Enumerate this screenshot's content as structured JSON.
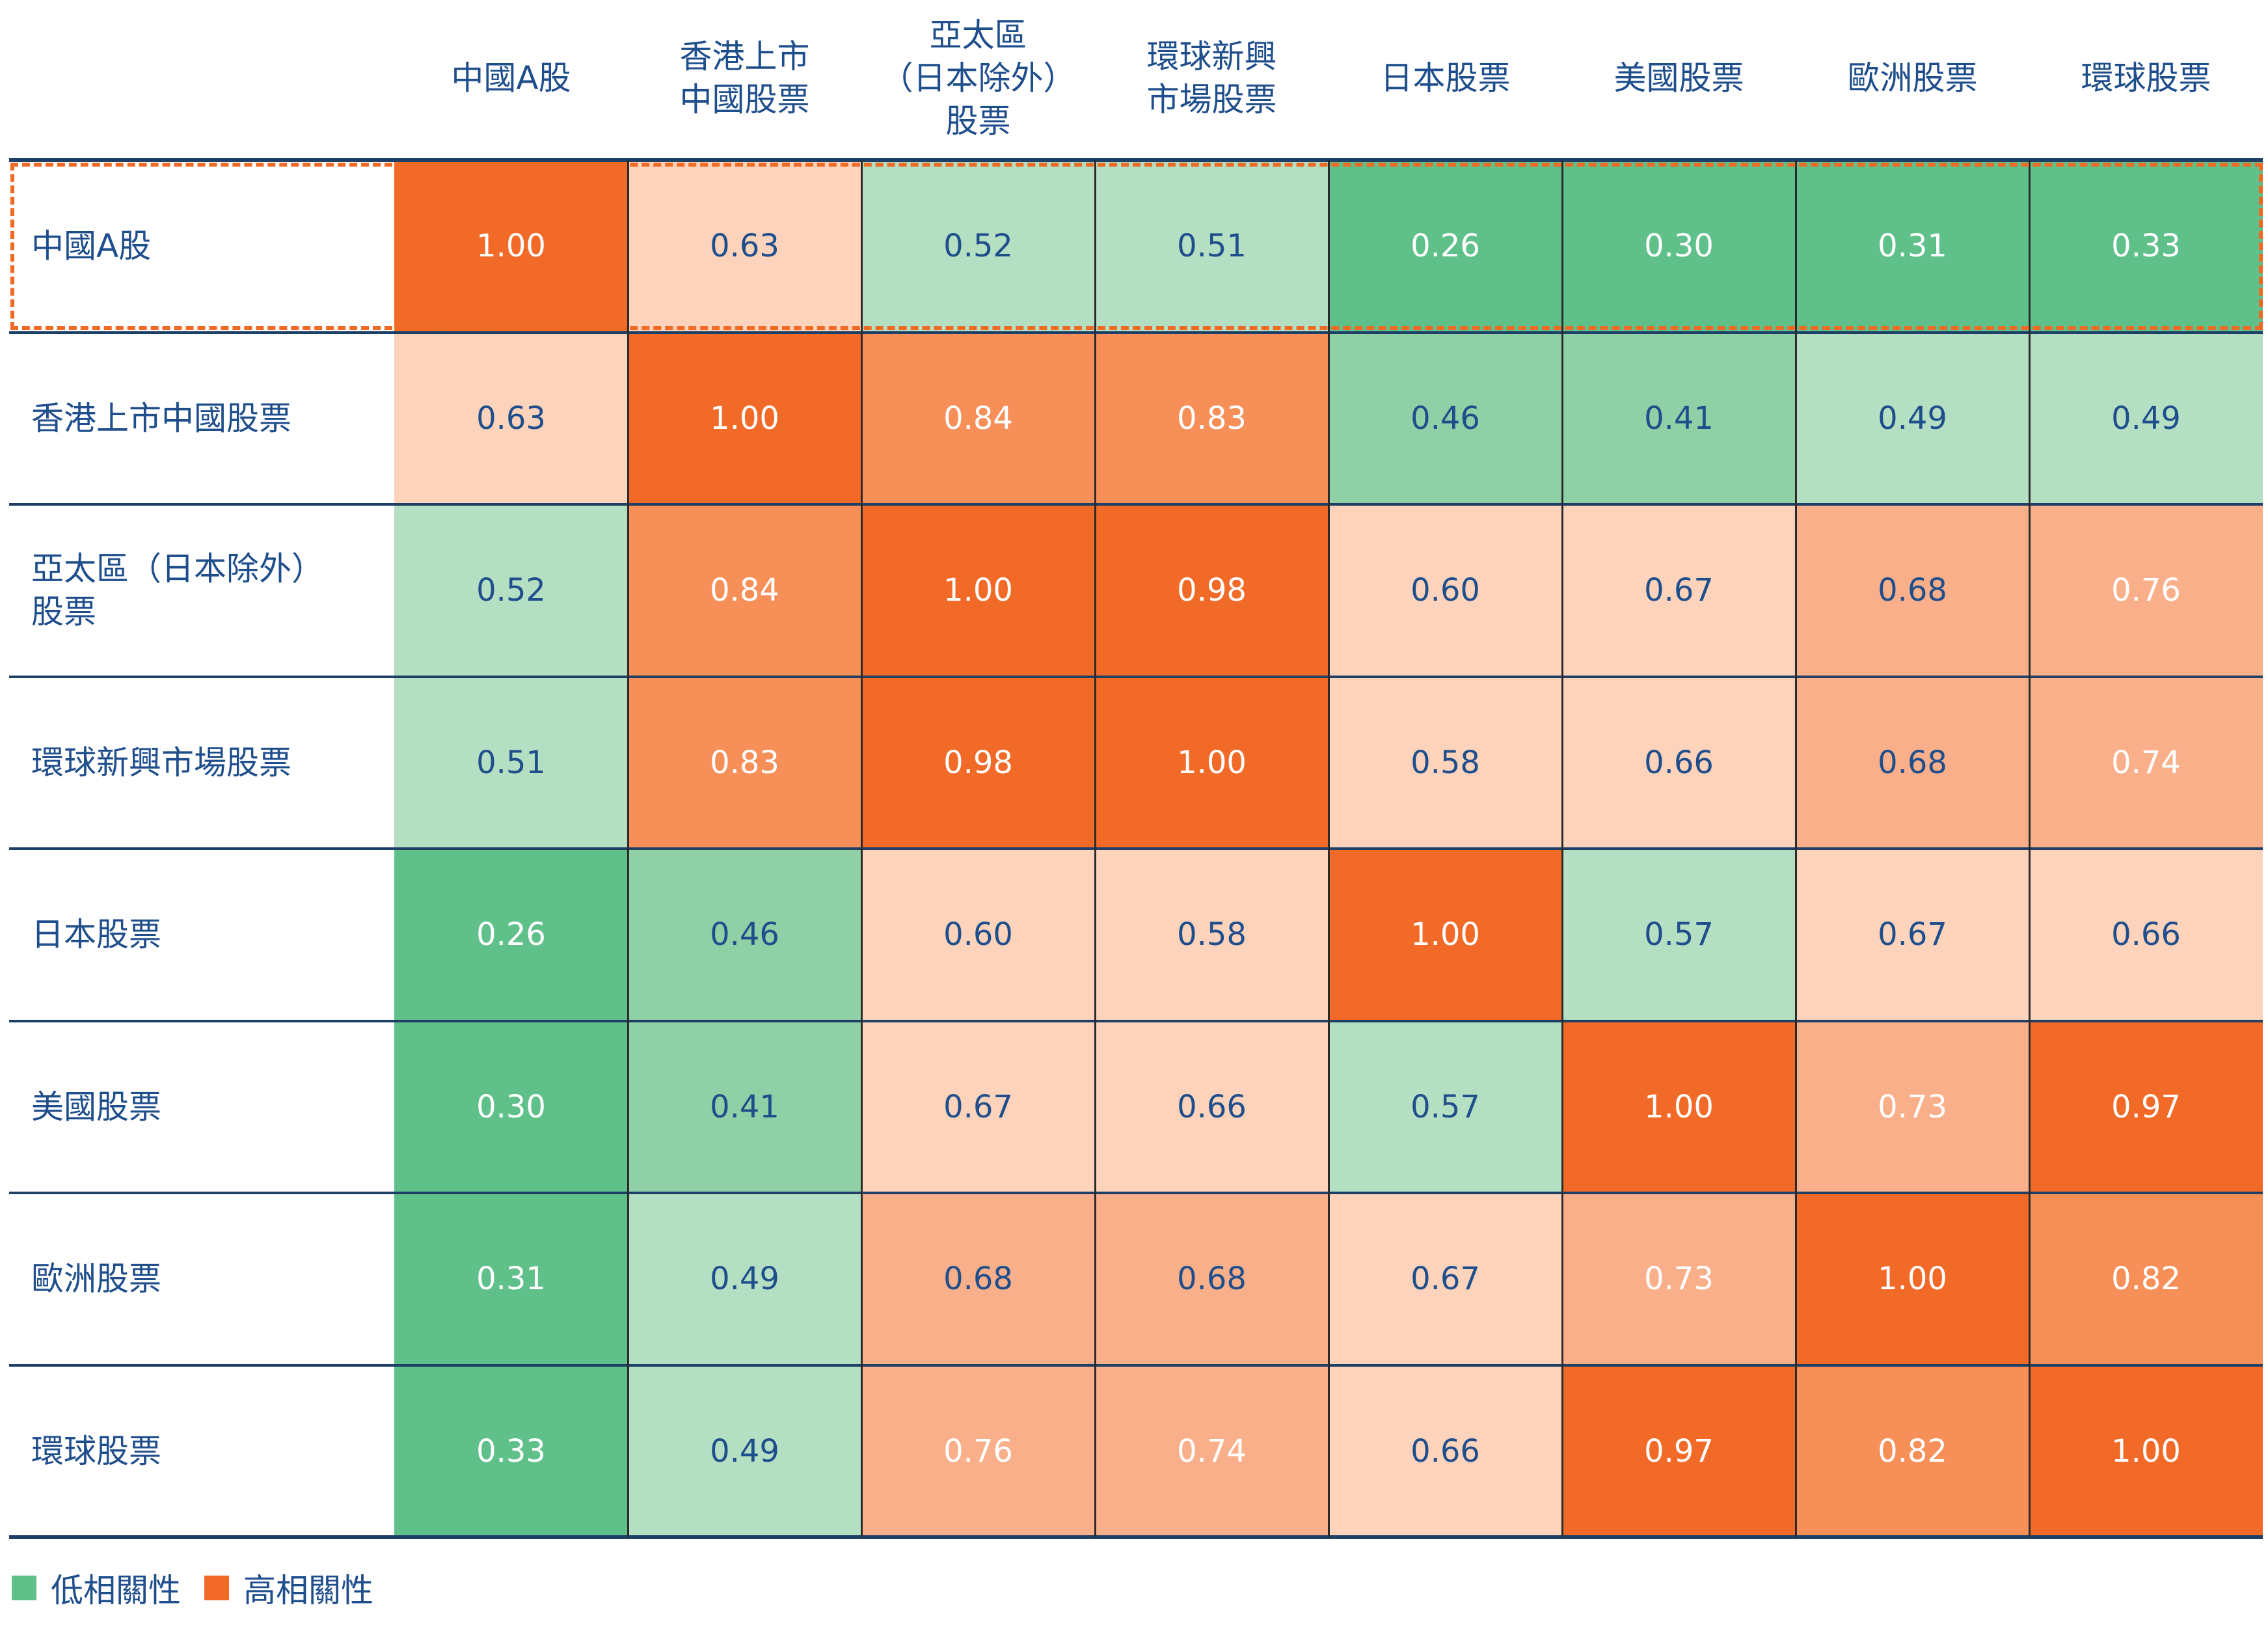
{
  "chart_data": {
    "type": "heatmap",
    "columns": [
      "中國A股",
      "香港上市\n中國股票",
      "亞太區\n（日本除外）\n股票",
      "環球新興\n市場股票",
      "日本股票",
      "美國股票",
      "歐洲股票",
      "環球股票"
    ],
    "rows": [
      "中國A股",
      "香港上市中國股票",
      "亞太區（日本除外）\n股票",
      "環球新興市場股票",
      "日本股票",
      "美國股票",
      "歐洲股票",
      "環球股票"
    ],
    "values": [
      [
        1.0,
        0.63,
        0.52,
        0.51,
        0.26,
        0.3,
        0.31,
        0.33
      ],
      [
        0.63,
        1.0,
        0.84,
        0.83,
        0.46,
        0.41,
        0.49,
        0.49
      ],
      [
        0.52,
        0.84,
        1.0,
        0.98,
        0.6,
        0.67,
        0.68,
        0.76
      ],
      [
        0.51,
        0.83,
        0.98,
        1.0,
        0.58,
        0.66,
        0.68,
        0.74
      ],
      [
        0.26,
        0.46,
        0.6,
        0.58,
        1.0,
        0.57,
        0.67,
        0.66
      ],
      [
        0.3,
        0.41,
        0.67,
        0.66,
        0.57,
        1.0,
        0.73,
        0.97
      ],
      [
        0.31,
        0.49,
        0.68,
        0.68,
        0.67,
        0.73,
        1.0,
        0.82
      ],
      [
        0.33,
        0.49,
        0.76,
        0.74,
        0.66,
        0.97,
        0.82,
        1.0
      ]
    ],
    "highlighted_row": 0,
    "legend": [
      {
        "label": "低相關性",
        "color": "#5fc08a"
      },
      {
        "label": "高相關性",
        "color": "#f26a28"
      }
    ],
    "colors": {
      "very_low": "#5fc08a",
      "low": "#8fd0a6",
      "mid_low": "#b4dfc2",
      "mid": "#fdd3bb",
      "mid_high": "#f9b08a",
      "high": "#f78f58",
      "very_high": "#f26a28",
      "dark_text": "#1f4e8c",
      "light_text": "#ffffff",
      "accent": "#ef6a24"
    }
  }
}
